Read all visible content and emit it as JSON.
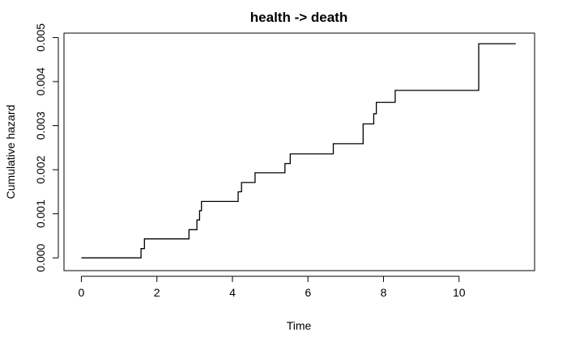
{
  "chart_data": {
    "type": "line",
    "step": true,
    "title": "health -> death",
    "xlabel": "Time",
    "ylabel": "Cumulative hazard",
    "xlim": [
      -0.46,
      12.0
    ],
    "ylim": [
      -0.00029,
      0.0051
    ],
    "x_ticks": [
      0,
      2,
      4,
      6,
      8,
      10
    ],
    "x_tick_labels": [
      "0",
      "2",
      "4",
      "6",
      "8",
      "10"
    ],
    "y_ticks": [
      0.0,
      0.001,
      0.002,
      0.003,
      0.004,
      0.005
    ],
    "y_tick_labels": [
      "0.000",
      "0.001",
      "0.002",
      "0.003",
      "0.004",
      "0.005"
    ],
    "grid": false,
    "series": [
      {
        "color": "#000000",
        "x": [
          0.0,
          1.58,
          1.67,
          2.85,
          3.06,
          3.13,
          3.18,
          4.15,
          4.24,
          4.6,
          5.39,
          5.53,
          6.67,
          7.46,
          7.74,
          7.81,
          8.31,
          10.52,
          11.5
        ],
        "y": [
          0.0,
          0.00021,
          0.00043,
          0.00064,
          0.00086,
          0.00107,
          0.00128,
          0.0015,
          0.00171,
          0.00193,
          0.00214,
          0.00236,
          0.00259,
          0.00304,
          0.00327,
          0.00353,
          0.0038,
          0.00486,
          0.00486
        ]
      }
    ]
  }
}
